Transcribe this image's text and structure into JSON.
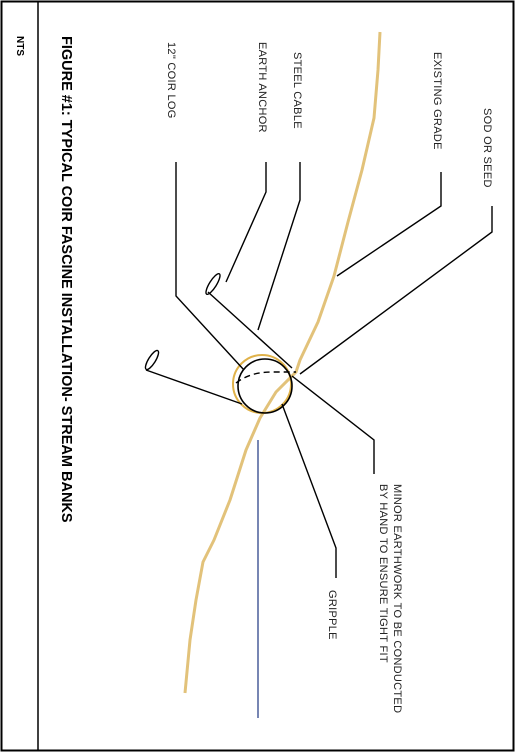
{
  "figure": {
    "title": "FIGURE #1: TYPICAL COIR FASCINE INSTALLATION- STREAM BANKS",
    "scale_note": "NTS"
  },
  "labels": {
    "sod_or_seed": "SOD OR SEED",
    "existing_grade": "EXISTING GRADE",
    "steel_cable": "STEEL CABLE",
    "earth_anchor": "EARTH ANCHOR",
    "coir_log": "12\" COIR LOG",
    "earthwork_line1": "MINOR EARTHWORK TO BE CONDUCTED",
    "earthwork_line2": "BY HAND TO ENSURE TIGHT FIT",
    "gripple": "GRIPPLE"
  },
  "colors": {
    "grade_line": "#e2c27a",
    "water_line": "#4a5f9a",
    "ink": "#000000",
    "log_outline": "#e0b24a"
  }
}
